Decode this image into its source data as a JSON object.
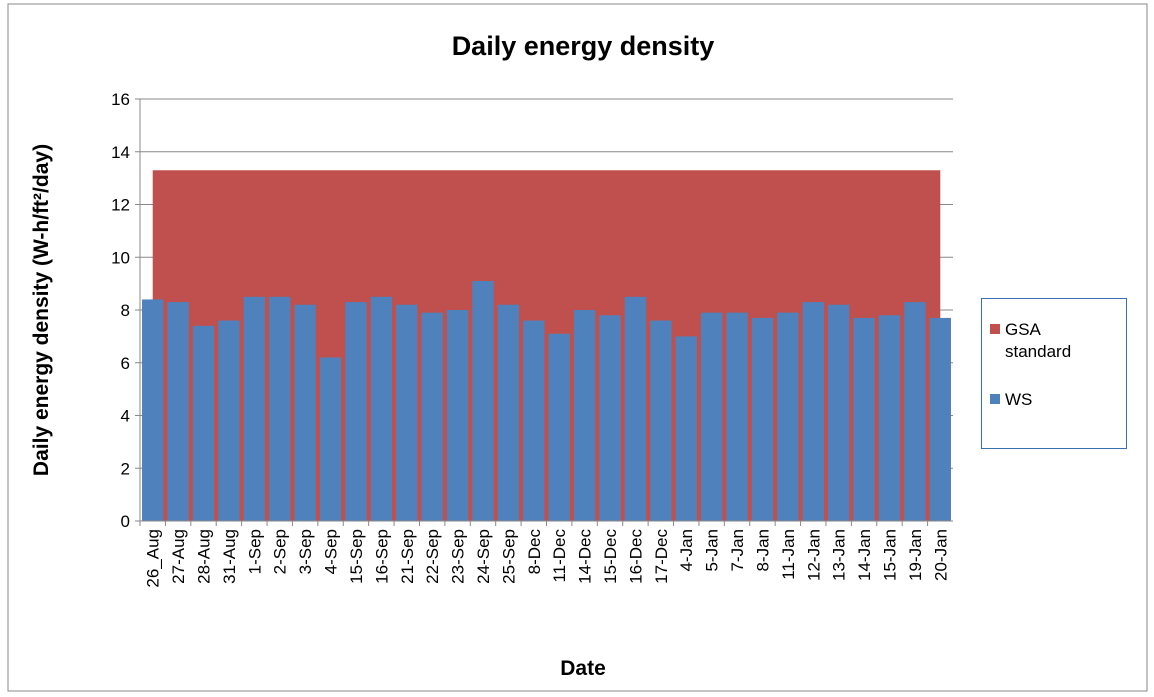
{
  "chart_data": {
    "type": "bar",
    "title": "Daily energy density",
    "x_label": "Date",
    "y_label": "Daily energy density (W-h/ft²/day)",
    "categories": [
      "26_Aug",
      "27-Aug",
      "28-Aug",
      "31-Aug",
      "1-Sep",
      "2-Sep",
      "3-Sep",
      "4-Sep",
      "15-Sep",
      "16-Sep",
      "21-Sep",
      "22-Sep",
      "23-Sep",
      "24-Sep",
      "25-Sep",
      "8-Dec",
      "11-Dec",
      "14-Dec",
      "15-Dec",
      "16-Dec",
      "17-Dec",
      "4-Jan",
      "5-Jan",
      "7-Jan",
      "8-Jan",
      "11-Jan",
      "12-Jan",
      "13-Jan",
      "14-Jan",
      "15-Jan",
      "19-Jan",
      "20-Jan"
    ],
    "series": [
      {
        "name": "GSA standard",
        "type": "area",
        "color": "#c0504d",
        "values": [
          13.3,
          13.3,
          13.3,
          13.3,
          13.3,
          13.3,
          13.3,
          13.3,
          13.3,
          13.3,
          13.3,
          13.3,
          13.3,
          13.3,
          13.3,
          13.3,
          13.3,
          13.3,
          13.3,
          13.3,
          13.3,
          13.3,
          13.3,
          13.3,
          13.3,
          13.3,
          13.3,
          13.3,
          13.3,
          13.3,
          13.3,
          13.3
        ]
      },
      {
        "name": "WS",
        "type": "bar",
        "color": "#4f81bd",
        "values": [
          8.4,
          8.3,
          7.4,
          7.6,
          8.5,
          8.5,
          8.2,
          6.2,
          8.3,
          8.5,
          8.2,
          7.9,
          8.0,
          9.1,
          8.2,
          7.6,
          7.1,
          8.0,
          7.8,
          8.5,
          7.6,
          7.0,
          7.9,
          7.9,
          7.7,
          7.9,
          8.3,
          8.2,
          7.7,
          7.8,
          8.3,
          7.7
        ]
      }
    ],
    "ylim": [
      0,
      16
    ],
    "yticks": [
      0,
      2,
      4,
      6,
      8,
      10,
      12,
      14,
      16
    ],
    "grid": true,
    "legend": "right"
  }
}
